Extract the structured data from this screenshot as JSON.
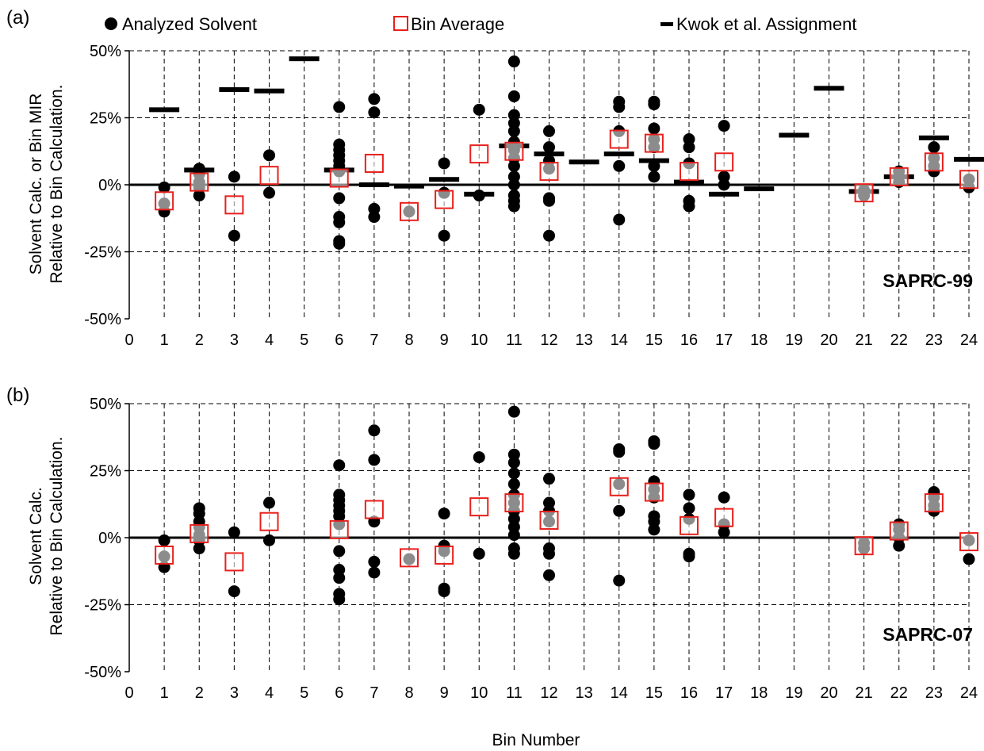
{
  "legend": {
    "analyzed": "Analyzed Solvent",
    "bin_avg": "Bin Average",
    "kwok": "Kwok et al. Assignment"
  },
  "colors": {
    "analyzed": "#000000",
    "bin_avg": "#e8201c",
    "kwok": "#000000"
  },
  "chart_data": [
    {
      "type": "scatter",
      "panel_label": "(a)",
      "model_label": "SAPRC-99",
      "xlabel": "",
      "ylabel_line1": "Solvent Calc. or Bin MIR",
      "ylabel_line2": "Relative to Bin Calculation.",
      "xlim": [
        0,
        24
      ],
      "ylim": [
        -50,
        50
      ],
      "xticks": [
        "0",
        "1",
        "2",
        "3",
        "4",
        "5",
        "6",
        "7",
        "8",
        "9",
        "10",
        "11",
        "12",
        "13",
        "14",
        "15",
        "16",
        "17",
        "18",
        "19",
        "20",
        "21",
        "22",
        "23",
        "24"
      ],
      "yticks": [
        "-50%",
        "-25%",
        "0%",
        "25%",
        "50%"
      ],
      "series": [
        {
          "name": "Analyzed Solvent",
          "points": [
            [
              1,
              -10
            ],
            [
              1,
              -7
            ],
            [
              1,
              -1
            ],
            [
              2,
              -4
            ],
            [
              2,
              -1
            ],
            [
              2,
              1
            ],
            [
              2,
              4
            ],
            [
              2,
              6
            ],
            [
              3,
              3
            ],
            [
              3,
              -19
            ],
            [
              4,
              11
            ],
            [
              4,
              -3
            ],
            [
              6,
              29
            ],
            [
              6,
              15
            ],
            [
              6,
              13
            ],
            [
              6,
              11
            ],
            [
              6,
              9
            ],
            [
              6,
              7
            ],
            [
              6,
              5
            ],
            [
              6,
              -5
            ],
            [
              6,
              -12
            ],
            [
              6,
              -14
            ],
            [
              6,
              -21
            ],
            [
              6,
              -22
            ],
            [
              7,
              32
            ],
            [
              7,
              27
            ],
            [
              7,
              -9
            ],
            [
              7,
              -12
            ],
            [
              8,
              -10
            ],
            [
              9,
              8
            ],
            [
              9,
              -3
            ],
            [
              9,
              -19
            ],
            [
              10,
              28
            ],
            [
              10,
              -4
            ],
            [
              11,
              46
            ],
            [
              11,
              33
            ],
            [
              11,
              26
            ],
            [
              11,
              23
            ],
            [
              11,
              20
            ],
            [
              11,
              16
            ],
            [
              11,
              13
            ],
            [
              11,
              10
            ],
            [
              11,
              7
            ],
            [
              11,
              3
            ],
            [
              11,
              0
            ],
            [
              11,
              -4
            ],
            [
              11,
              -6
            ],
            [
              11,
              -8
            ],
            [
              12,
              20
            ],
            [
              12,
              14
            ],
            [
              12,
              9
            ],
            [
              12,
              6
            ],
            [
              12,
              -5
            ],
            [
              12,
              -6
            ],
            [
              12,
              -19
            ],
            [
              14,
              31
            ],
            [
              14,
              29
            ],
            [
              14,
              20
            ],
            [
              14,
              7
            ],
            [
              14,
              -13
            ],
            [
              15,
              31
            ],
            [
              15,
              30
            ],
            [
              15,
              21
            ],
            [
              15,
              17
            ],
            [
              15,
              14
            ],
            [
              15,
              7
            ],
            [
              15,
              3
            ],
            [
              16,
              17
            ],
            [
              16,
              14
            ],
            [
              16,
              8
            ],
            [
              16,
              -6
            ],
            [
              16,
              -8
            ],
            [
              17,
              22
            ],
            [
              17,
              3
            ],
            [
              17,
              0
            ],
            [
              21,
              -2
            ],
            [
              21,
              -4
            ],
            [
              22,
              5
            ],
            [
              22,
              3
            ],
            [
              22,
              1
            ],
            [
              23,
              14
            ],
            [
              23,
              10
            ],
            [
              23,
              7
            ],
            [
              23,
              5
            ],
            [
              24,
              2
            ],
            [
              24,
              -1
            ]
          ]
        },
        {
          "name": "Bin Average",
          "points": [
            [
              1,
              -6
            ],
            [
              2,
              1
            ],
            [
              3,
              -7.5
            ],
            [
              4,
              3.5
            ],
            [
              6,
              2.5
            ],
            [
              7,
              8
            ],
            [
              8,
              -10
            ],
            [
              9,
              -5.5
            ],
            [
              10,
              11.5
            ],
            [
              11,
              12.5
            ],
            [
              12,
              5
            ],
            [
              14,
              17
            ],
            [
              15,
              15.5
            ],
            [
              16,
              5
            ],
            [
              17,
              8.5
            ],
            [
              21,
              -3
            ],
            [
              22,
              3
            ],
            [
              23,
              8.5
            ],
            [
              24,
              2
            ]
          ]
        },
        {
          "name": "Kwok et al. Assignment",
          "points": [
            [
              1,
              28
            ],
            [
              2,
              5.5
            ],
            [
              3,
              35.5
            ],
            [
              4,
              35
            ],
            [
              5,
              47
            ],
            [
              6,
              5.5
            ],
            [
              7,
              0
            ],
            [
              8,
              -0.5
            ],
            [
              9,
              2
            ],
            [
              10,
              -3.5
            ],
            [
              11,
              14.5
            ],
            [
              12,
              11.5
            ],
            [
              13,
              8.5
            ],
            [
              14,
              11.5
            ],
            [
              15,
              9
            ],
            [
              16,
              1
            ],
            [
              17,
              -3.5
            ],
            [
              18,
              -1.5
            ],
            [
              19,
              18.5
            ],
            [
              20,
              36
            ],
            [
              21,
              -2.5
            ],
            [
              22,
              3
            ],
            [
              23,
              17.5
            ],
            [
              24,
              9.5
            ]
          ]
        }
      ]
    },
    {
      "type": "scatter",
      "panel_label": "(b)",
      "model_label": "SAPRC-07",
      "xlabel": "Bin Number",
      "ylabel_line1": "Solvent Calc.",
      "ylabel_line2": "Relative to Bin Calculation.",
      "xlim": [
        0,
        24
      ],
      "ylim": [
        -50,
        50
      ],
      "xticks": [
        "0",
        "1",
        "2",
        "3",
        "4",
        "5",
        "6",
        "7",
        "8",
        "9",
        "10",
        "11",
        "12",
        "13",
        "14",
        "15",
        "16",
        "17",
        "18",
        "19",
        "20",
        "21",
        "22",
        "23",
        "24"
      ],
      "yticks": [
        "-50%",
        "-25%",
        "0%",
        "25%",
        "50%"
      ],
      "series": [
        {
          "name": "Analyzed Solvent",
          "points": [
            [
              1,
              -11
            ],
            [
              1,
              -7
            ],
            [
              1,
              -1
            ],
            [
              2,
              11
            ],
            [
              2,
              9
            ],
            [
              2,
              6
            ],
            [
              2,
              4
            ],
            [
              2,
              1
            ],
            [
              2,
              -1
            ],
            [
              2,
              -4
            ],
            [
              3,
              2
            ],
            [
              3,
              -20
            ],
            [
              4,
              13
            ],
            [
              4,
              -1
            ],
            [
              6,
              27
            ],
            [
              6,
              16
            ],
            [
              6,
              14
            ],
            [
              6,
              12
            ],
            [
              6,
              10
            ],
            [
              6,
              8
            ],
            [
              6,
              5
            ],
            [
              6,
              -5
            ],
            [
              6,
              -12
            ],
            [
              6,
              -15
            ],
            [
              6,
              -21
            ],
            [
              6,
              -23
            ],
            [
              7,
              40
            ],
            [
              7,
              29
            ],
            [
              7,
              6
            ],
            [
              7,
              -9
            ],
            [
              7,
              -13
            ],
            [
              8,
              -8
            ],
            [
              9,
              9
            ],
            [
              9,
              -3
            ],
            [
              9,
              -5
            ],
            [
              9,
              -19
            ],
            [
              9,
              -20
            ],
            [
              10,
              30
            ],
            [
              10,
              -6
            ],
            [
              11,
              47
            ],
            [
              11,
              31
            ],
            [
              11,
              28
            ],
            [
              11,
              24
            ],
            [
              11,
              20
            ],
            [
              11,
              16
            ],
            [
              11,
              13
            ],
            [
              11,
              10
            ],
            [
              11,
              7
            ],
            [
              11,
              4
            ],
            [
              11,
              1
            ],
            [
              11,
              -4
            ],
            [
              11,
              -6
            ],
            [
              12,
              22
            ],
            [
              12,
              13
            ],
            [
              12,
              10
            ],
            [
              12,
              6
            ],
            [
              12,
              -4
            ],
            [
              12,
              -6
            ],
            [
              12,
              -14
            ],
            [
              14,
              33
            ],
            [
              14,
              32
            ],
            [
              14,
              20
            ],
            [
              14,
              10
            ],
            [
              14,
              -16
            ],
            [
              15,
              36
            ],
            [
              15,
              35
            ],
            [
              15,
              21
            ],
            [
              15,
              18
            ],
            [
              15,
              15
            ],
            [
              15,
              8
            ],
            [
              15,
              6
            ],
            [
              15,
              3
            ],
            [
              16,
              16
            ],
            [
              16,
              11
            ],
            [
              16,
              7
            ],
            [
              16,
              -6
            ],
            [
              16,
              -7
            ],
            [
              17,
              15
            ],
            [
              17,
              5
            ],
            [
              17,
              2
            ],
            [
              21,
              -2
            ],
            [
              21,
              -4
            ],
            [
              22,
              5
            ],
            [
              22,
              3
            ],
            [
              22,
              0
            ],
            [
              22,
              -3
            ],
            [
              23,
              17
            ],
            [
              23,
              15
            ],
            [
              23,
              12
            ],
            [
              23,
              10
            ],
            [
              24,
              -1
            ],
            [
              24,
              -8
            ]
          ]
        },
        {
          "name": "Bin Average",
          "points": [
            [
              1,
              -6.5
            ],
            [
              2,
              1.5
            ],
            [
              3,
              -9
            ],
            [
              4,
              6
            ],
            [
              6,
              3
            ],
            [
              7,
              10.5
            ],
            [
              8,
              -7.5
            ],
            [
              9,
              -6.5
            ],
            [
              10,
              11.5
            ],
            [
              11,
              13
            ],
            [
              12,
              6.5
            ],
            [
              14,
              19
            ],
            [
              15,
              17
            ],
            [
              16,
              4.5
            ],
            [
              17,
              7.5
            ],
            [
              21,
              -3
            ],
            [
              22,
              2.5
            ],
            [
              23,
              13
            ],
            [
              24,
              -1.5
            ]
          ]
        }
      ]
    }
  ]
}
